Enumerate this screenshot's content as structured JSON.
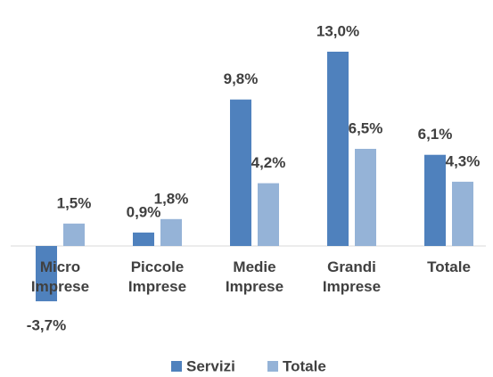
{
  "chart_data": {
    "type": "bar",
    "categories": [
      "Micro Imprese",
      "Piccole Imprese",
      "Medie Imprese",
      "Grandi Imprese",
      "Totale"
    ],
    "series": [
      {
        "name": "Servizi",
        "color": "#4f81bd",
        "values": [
          -3.7,
          0.9,
          9.8,
          13.0,
          6.1
        ],
        "value_labels": [
          "-3,7%",
          "0,9%",
          "9,8%",
          "13,0%",
          "6,1%"
        ]
      },
      {
        "name": "Totale",
        "color": "#95b3d7",
        "values": [
          1.5,
          1.8,
          4.2,
          6.5,
          4.3
        ],
        "value_labels": [
          "1,5%",
          "1,8%",
          "4,2%",
          "6,5%",
          "4,3%"
        ]
      }
    ],
    "legend": "bottom"
  }
}
